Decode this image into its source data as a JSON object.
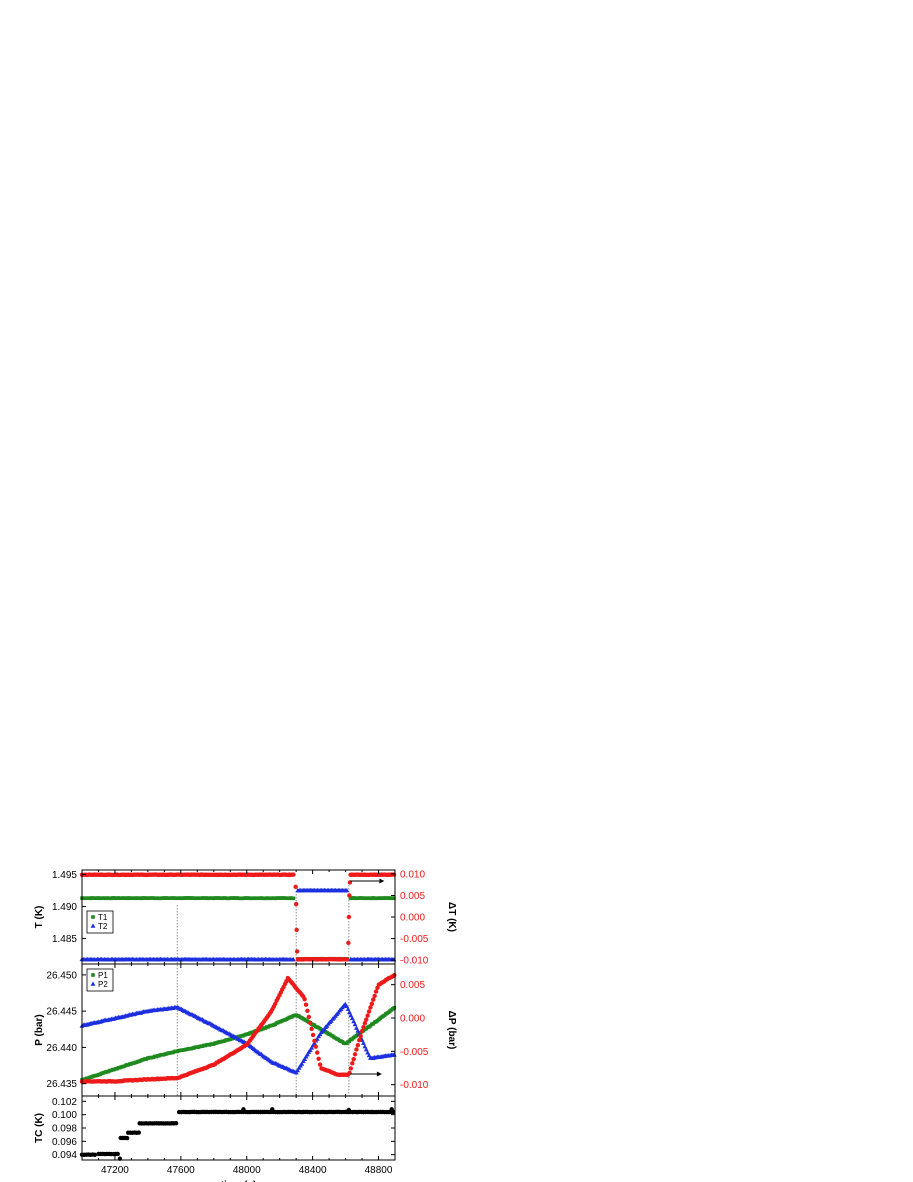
{
  "chart_data": [
    {
      "id": "temperature",
      "type": "scatter",
      "ylabel": "T (K)",
      "y2label": "ΔT (K)",
      "xlim": [
        47000,
        48900
      ],
      "ylim": [
        1.481,
        1.4957
      ],
      "y2lim": [
        -0.0109,
        0.0109
      ],
      "yticks": [
        1.485,
        1.49,
        1.495
      ],
      "ytick_labels": [
        "1.485",
        "1.490",
        "1.495"
      ],
      "y2ticks": [
        -0.01,
        -0.005,
        0,
        0.005,
        0.01
      ],
      "y2tick_labels": [
        "-0.010",
        "-0.005",
        "0.000",
        "0.005",
        "0.010"
      ],
      "legend": {
        "placement": "middle-left",
        "entries": [
          "T1",
          "T2"
        ]
      },
      "series": [
        {
          "name": "T1",
          "color": "#1f8a1f",
          "marker": "square",
          "axis": "left",
          "segments": [
            {
              "x": [
                47000,
                48290
              ],
              "y": 1.4913
            },
            {
              "x": [
                48310,
                48610
              ],
              "y": 1.4818
            },
            {
              "x": [
                48630,
                48900
              ],
              "y": 1.4913
            }
          ]
        },
        {
          "name": "T2",
          "color": "#1c2fe0",
          "marker": "triangle",
          "axis": "left",
          "segments": [
            {
              "x": [
                47000,
                48290
              ],
              "y": 1.4817
            },
            {
              "x": [
                48310,
                48610
              ],
              "y": 1.4925
            },
            {
              "x": [
                48630,
                48900
              ],
              "y": 1.4817
            }
          ]
        },
        {
          "name": "",
          "color": "#ee1a1a",
          "marker": "circle",
          "axis": "right",
          "segments": [
            {
              "x": [
                47000,
                48290
              ],
              "y": 0.0098
            },
            {
              "x": [
                48310,
                48610
              ],
              "y": -0.0098
            },
            {
              "x": [
                48630,
                48900
              ],
              "y": 0.0098
            }
          ]
        }
      ]
    },
    {
      "id": "pressure",
      "type": "scatter",
      "ylabel": "P (bar)",
      "y2label": "ΔP (bar)",
      "xlim": [
        47000,
        48900
      ],
      "ylim": [
        26.4333,
        26.4515
      ],
      "y2lim": [
        -0.0117,
        0.0081
      ],
      "yticks": [
        26.435,
        26.44,
        26.445,
        26.45
      ],
      "ytick_labels": [
        "26.435",
        "26.440",
        "26.445",
        "26.450"
      ],
      "y2ticks": [
        -0.01,
        -0.005,
        0,
        0.005
      ],
      "y2tick_labels": [
        "-0.010",
        "-0.005",
        "0.000",
        "0.005"
      ],
      "legend": {
        "placement": "top-left",
        "entries": [
          "P1",
          "P2"
        ]
      },
      "series": [
        {
          "name": "P1",
          "color": "#1f8a1f",
          "marker": "square",
          "axis": "left",
          "x": [
            47000,
            47200,
            47400,
            47580,
            47800,
            48000,
            48150,
            48300,
            48450,
            48600,
            48750,
            48900
          ],
          "y": [
            26.4355,
            26.437,
            26.4385,
            26.4395,
            26.4405,
            26.4418,
            26.443,
            26.4445,
            26.4425,
            26.4405,
            26.443,
            26.4455
          ]
        },
        {
          "name": "P2",
          "color": "#1c2fe0",
          "marker": "triangle",
          "axis": "left",
          "x": [
            47000,
            47200,
            47400,
            47580,
            47800,
            48000,
            48150,
            48300,
            48450,
            48600,
            48750,
            48900
          ],
          "y": [
            26.443,
            26.444,
            26.445,
            26.4455,
            26.443,
            26.4405,
            26.438,
            26.4365,
            26.442,
            26.446,
            26.4385,
            26.439
          ]
        },
        {
          "name": "",
          "color": "#ee1a1a",
          "marker": "circle",
          "axis": "right",
          "x": [
            47000,
            47200,
            47400,
            47580,
            47800,
            48000,
            48150,
            48250,
            48350,
            48450,
            48550,
            48620,
            48700,
            48800,
            48900
          ],
          "y": [
            -0.0095,
            -0.0095,
            -0.0092,
            -0.009,
            -0.007,
            -0.004,
            0.001,
            0.006,
            0.003,
            -0.0075,
            -0.0085,
            -0.0085,
            -0.002,
            0.005,
            0.0065
          ]
        }
      ]
    },
    {
      "id": "tc",
      "type": "scatter",
      "ylabel": "TC (K)",
      "xlabel": "time (s)",
      "xlim": [
        47000,
        48900
      ],
      "ylim": [
        0.0932,
        0.1028
      ],
      "yticks": [
        0.094,
        0.096,
        0.098,
        0.1,
        0.102
      ],
      "ytick_labels": [
        "0.094",
        "0.096",
        "0.098",
        "0.100",
        "0.102"
      ],
      "xticks": [
        47200,
        47600,
        48000,
        48400,
        48800
      ],
      "xtick_labels": [
        "47200",
        "47600",
        "48000",
        "48400",
        "48800"
      ],
      "series": [
        {
          "name": "",
          "color": "#000000",
          "marker": "circle",
          "axis": "left",
          "segments": [
            {
              "x": [
                47000,
                47080
              ],
              "y": 0.094
            },
            {
              "x": [
                47100,
                47220
              ],
              "y": 0.0941
            },
            {
              "x": [
                47235,
                47275
              ],
              "y": 0.0965
            },
            {
              "x": [
                47280,
                47345
              ],
              "y": 0.0973
            },
            {
              "x": [
                47350,
                47578
              ],
              "y": 0.0987
            },
            {
              "x": [
                47590,
                48900
              ],
              "y": 0.1004
            }
          ],
          "outliers": {
            "x": [
              47230,
              47980,
              48155,
              48620,
              48880
            ],
            "y": [
              0.0934,
              0.1008,
              0.1008,
              0.1007,
              0.1008
            ]
          }
        }
      ]
    }
  ],
  "annotations": {
    "vertical_lines_x": [
      47578,
      48300,
      48620
    ]
  }
}
